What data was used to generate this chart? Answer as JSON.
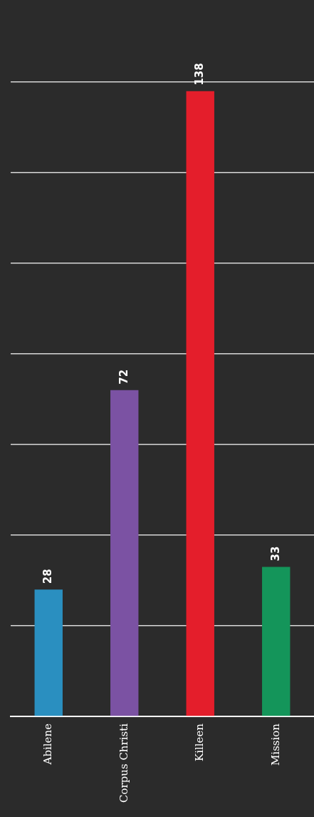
{
  "chart_data": {
    "type": "bar",
    "categories": [
      "Abilene",
      "Corpus Christi",
      "Killeen",
      "Mission"
    ],
    "values": [
      28,
      72,
      138,
      33
    ],
    "colors": [
      "#2a8fc0",
      "#7b52a3",
      "#e41e2b",
      "#14955a"
    ],
    "ylim": [
      0,
      140
    ],
    "yticks": [
      {
        "value": 0,
        "label": null
      },
      {
        "value": 20,
        "label": null
      },
      {
        "value": 40,
        "label": null
      },
      {
        "value": 60,
        "label": null
      },
      {
        "value": 80,
        "label": null
      },
      {
        "value": 100,
        "label": null
      },
      {
        "value": 120,
        "label": null
      },
      {
        "value": 140,
        "label": null
      }
    ],
    "grid": "y",
    "data_labels": true,
    "tick_labels": "x",
    "legend": false
  }
}
